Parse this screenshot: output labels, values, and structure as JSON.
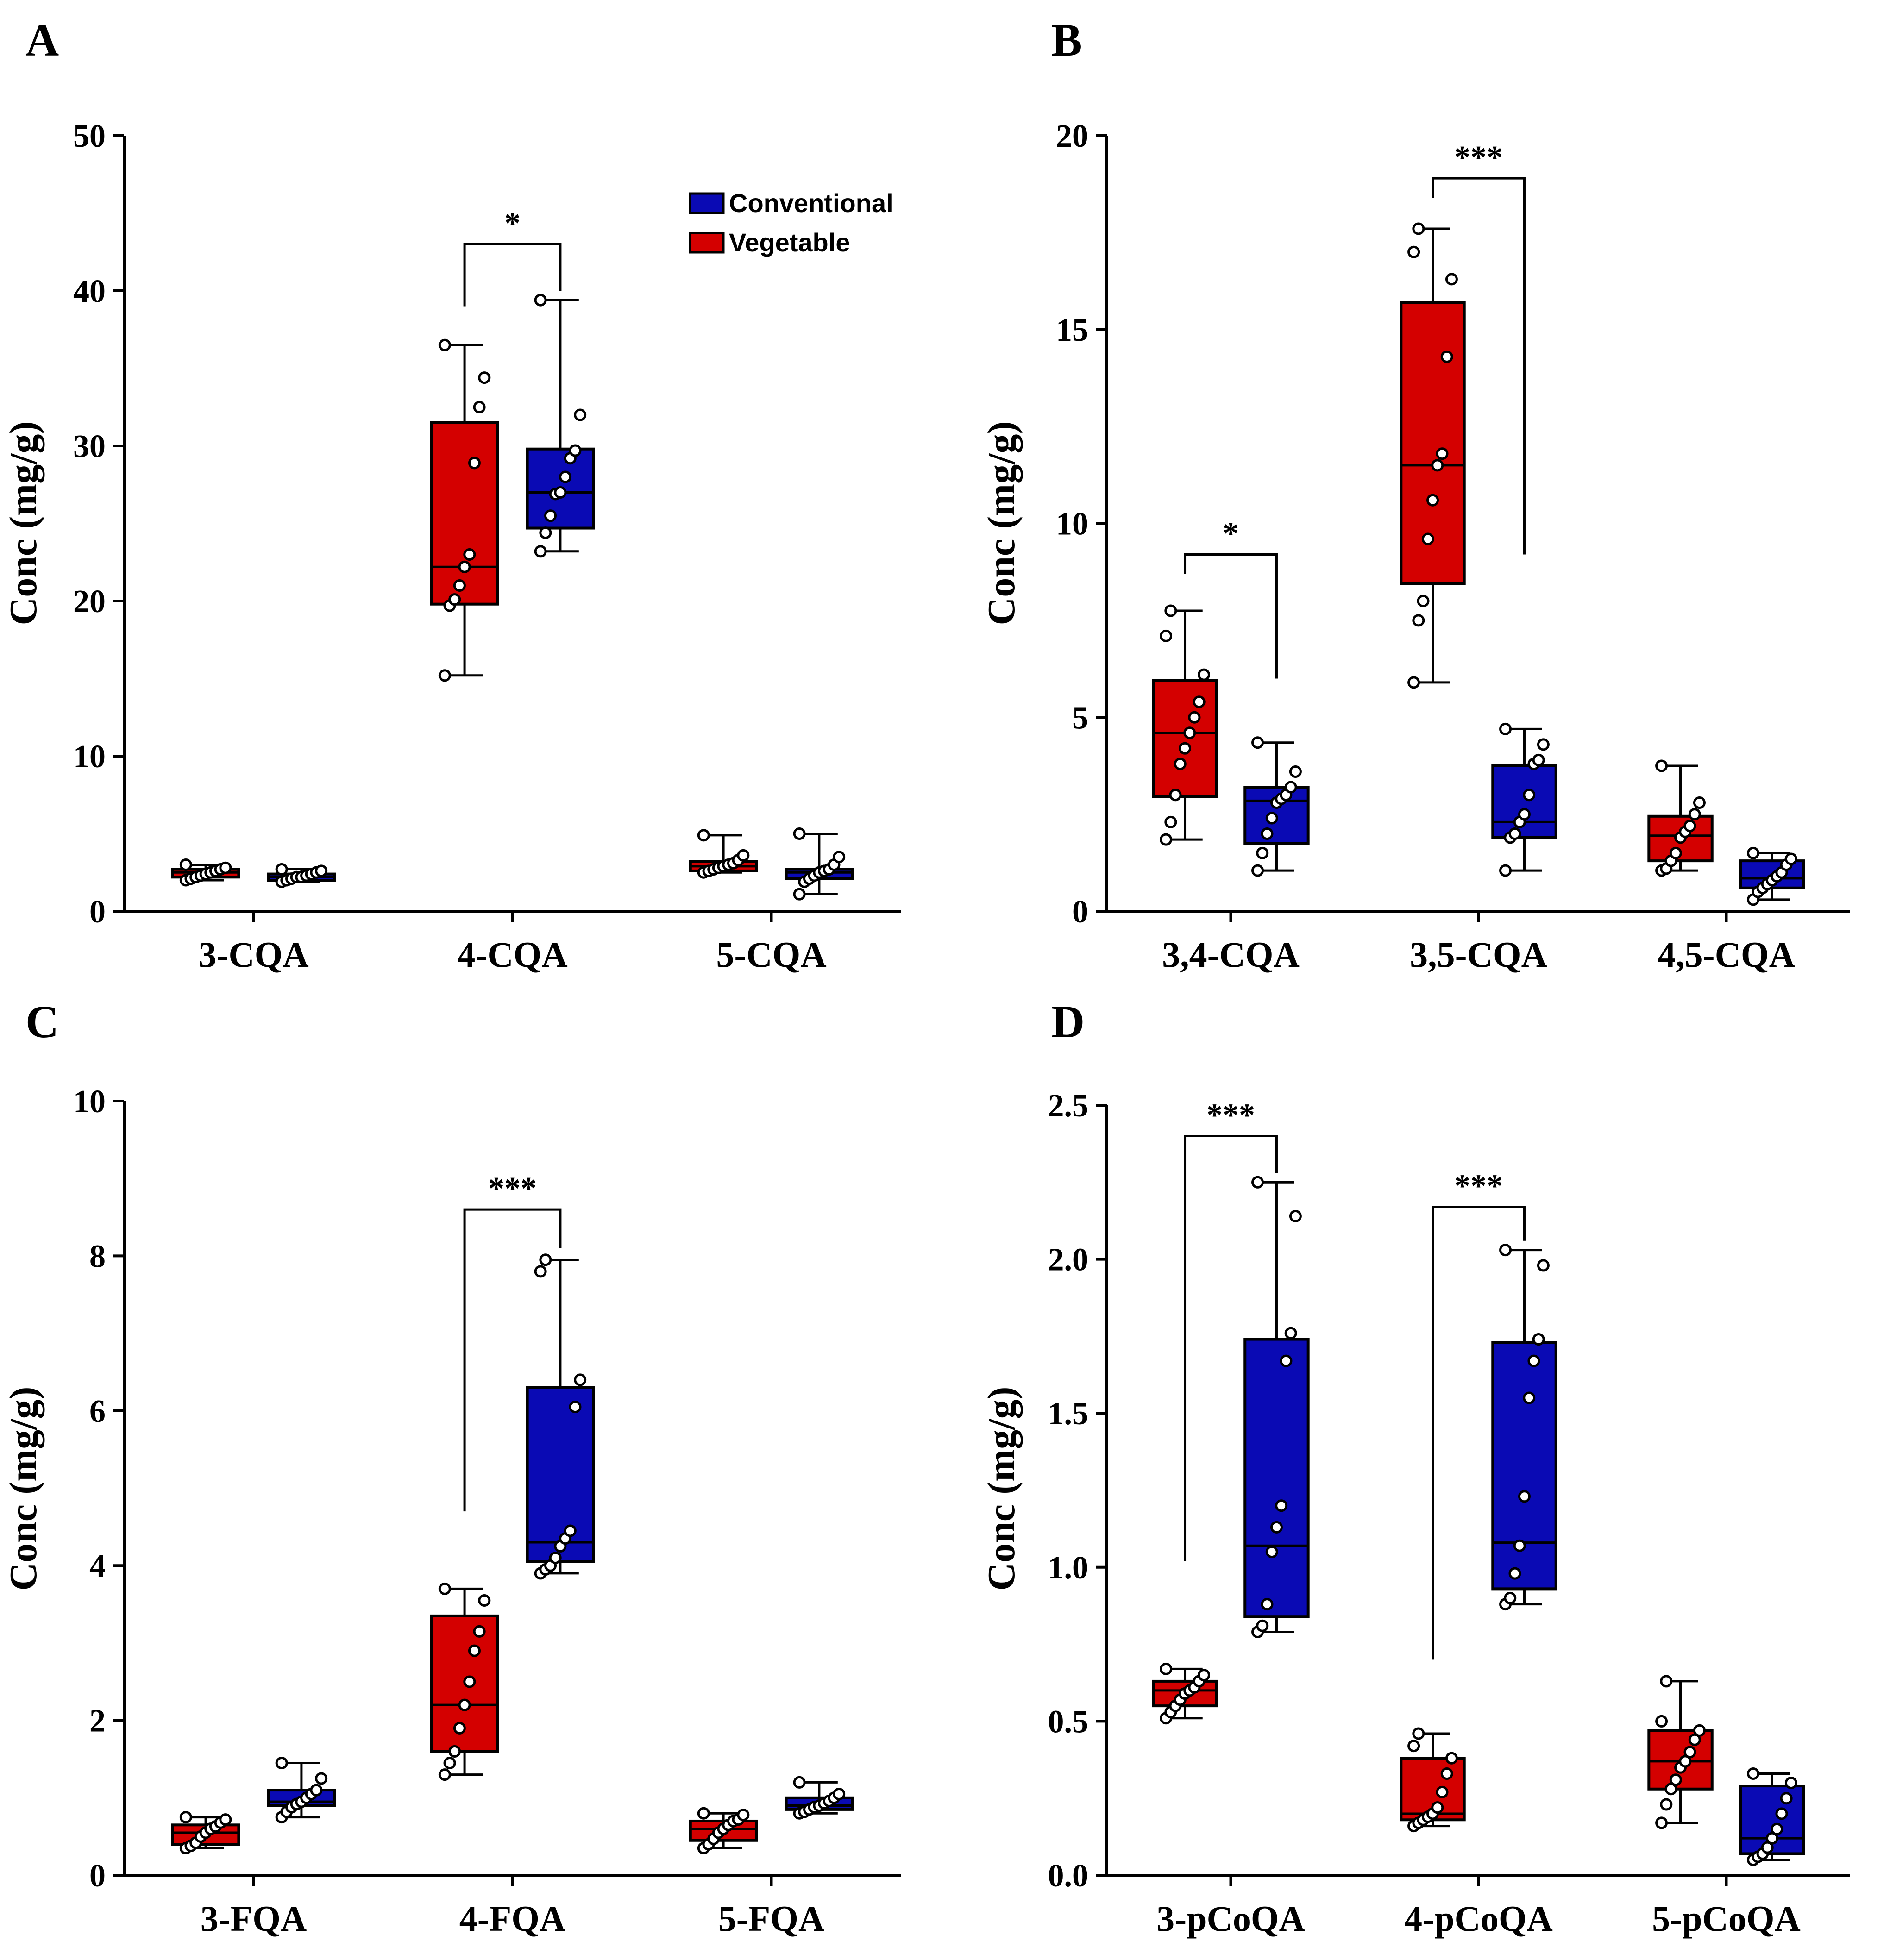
{
  "colors": {
    "vegetable": "#d40000",
    "conventional": "#0a0ab4",
    "axis": "#000000"
  },
  "legend": [
    {
      "name": "Conventional",
      "color": "#0a0ab4"
    },
    {
      "name": "Vegetable",
      "color": "#d40000"
    }
  ],
  "chart_data": [
    {
      "panel": "A",
      "type": "box",
      "ylabel": "Conc (mg/g)",
      "ylim": [
        0,
        50
      ],
      "yticks": [
        0,
        10,
        20,
        30,
        40,
        50
      ],
      "ytick_labels": [
        "0",
        "10",
        "20",
        "30",
        "40",
        "50"
      ],
      "categories": [
        "3-CQA",
        "4-CQA",
        "5-CQA"
      ],
      "series": [
        {
          "name": "Vegetable",
          "boxes": [
            {
              "min": 2.0,
              "q1": 2.2,
              "median": 2.5,
              "q3": 2.7,
              "max": 3.0,
              "points": [
                2.0,
                2.1,
                2.2,
                2.3,
                2.4,
                2.5,
                2.6,
                2.7,
                2.8,
                3.0
              ]
            },
            {
              "min": 15.2,
              "q1": 19.8,
              "median": 22.2,
              "q3": 31.5,
              "max": 36.5,
              "points": [
                15.2,
                19.7,
                20.1,
                21.0,
                22.2,
                23.0,
                28.9,
                32.5,
                34.4,
                36.5
              ]
            },
            {
              "min": 2.5,
              "q1": 2.6,
              "median": 2.9,
              "q3": 3.2,
              "max": 4.9,
              "points": [
                2.5,
                2.6,
                2.7,
                2.8,
                2.9,
                3.0,
                3.1,
                3.3,
                3.6,
                4.9
              ]
            }
          ]
        },
        {
          "name": "Conventional",
          "boxes": [
            {
              "min": 1.9,
              "q1": 2.0,
              "median": 2.2,
              "q3": 2.4,
              "max": 2.7,
              "points": [
                1.9,
                2.0,
                2.1,
                2.2,
                2.2,
                2.3,
                2.4,
                2.5,
                2.6,
                2.7
              ]
            },
            {
              "min": 23.2,
              "q1": 24.7,
              "median": 27.0,
              "q3": 29.8,
              "max": 39.4,
              "points": [
                23.2,
                24.4,
                25.5,
                26.9,
                27.0,
                28.0,
                29.2,
                29.7,
                32.0,
                39.4
              ]
            },
            {
              "min": 1.1,
              "q1": 2.1,
              "median": 2.5,
              "q3": 2.7,
              "max": 5.0,
              "points": [
                1.1,
                1.9,
                2.1,
                2.3,
                2.5,
                2.6,
                2.7,
                3.0,
                3.5,
                5.0
              ]
            }
          ]
        }
      ],
      "significance": [
        {
          "category": "4-CQA",
          "label": "*",
          "y": 43.0,
          "left_end": 39.0,
          "right_end": 40.0
        }
      ]
    },
    {
      "panel": "B",
      "type": "box",
      "ylabel": "Conc (mg/g)",
      "ylim": [
        0,
        20
      ],
      "yticks": [
        0,
        5,
        10,
        15,
        20
      ],
      "ytick_labels": [
        "0",
        "5",
        "10",
        "15",
        "20"
      ],
      "categories": [
        "3,4-CQA",
        "3,5-CQA",
        "4,5-CQA"
      ],
      "series": [
        {
          "name": "Vegetable",
          "boxes": [
            {
              "min": 1.85,
              "q1": 2.95,
              "median": 4.6,
              "q3": 5.95,
              "max": 7.75,
              "points": [
                1.85,
                2.3,
                3.0,
                3.8,
                4.2,
                4.6,
                5.0,
                5.4,
                6.1,
                7.1,
                7.75
              ]
            },
            {
              "min": 5.9,
              "q1": 8.45,
              "median": 11.5,
              "q3": 15.7,
              "max": 17.6,
              "points": [
                5.9,
                7.5,
                8.0,
                9.6,
                10.6,
                11.5,
                11.8,
                14.3,
                16.3,
                17.0,
                17.6
              ]
            },
            {
              "min": 1.05,
              "q1": 1.3,
              "median": 1.95,
              "q3": 2.45,
              "max": 3.75,
              "points": [
                1.05,
                1.1,
                1.3,
                1.5,
                1.9,
                2.05,
                2.2,
                2.5,
                2.8,
                3.75
              ]
            }
          ]
        },
        {
          "name": "Conventional",
          "boxes": [
            {
              "min": 1.05,
              "q1": 1.75,
              "median": 2.85,
              "q3": 3.2,
              "max": 4.35,
              "points": [
                1.05,
                1.5,
                2.0,
                2.4,
                2.8,
                2.9,
                3.0,
                3.2,
                3.6,
                4.35
              ]
            },
            {
              "min": 1.05,
              "q1": 1.9,
              "median": 2.3,
              "q3": 3.75,
              "max": 4.7,
              "points": [
                1.05,
                1.9,
                2.0,
                2.3,
                2.5,
                3.0,
                3.8,
                3.9,
                4.3,
                4.7
              ]
            },
            {
              "min": 0.3,
              "q1": 0.6,
              "median": 0.85,
              "q3": 1.3,
              "max": 1.5,
              "points": [
                0.3,
                0.5,
                0.6,
                0.7,
                0.8,
                0.9,
                1.0,
                1.2,
                1.35,
                1.5
              ]
            }
          ]
        }
      ],
      "significance": [
        {
          "category": "3,4-CQA",
          "label": "*",
          "y": 9.2,
          "left_end": 8.7,
          "right_end": 6.0
        },
        {
          "category": "3,5-CQA",
          "label": "***",
          "y": 18.9,
          "left_end": 18.4,
          "right_end": 9.2
        }
      ]
    },
    {
      "panel": "C",
      "type": "box",
      "ylabel": "Conc (mg/g)",
      "ylim": [
        0,
        10
      ],
      "yticks": [
        0,
        2,
        4,
        6,
        8,
        10
      ],
      "ytick_labels": [
        "0",
        "2",
        "4",
        "6",
        "8",
        "10"
      ],
      "categories": [
        "3-FQA",
        "4-FQA",
        "5-FQA"
      ],
      "series": [
        {
          "name": "Vegetable",
          "boxes": [
            {
              "min": 0.35,
              "q1": 0.4,
              "median": 0.55,
              "q3": 0.65,
              "max": 0.75,
              "points": [
                0.35,
                0.38,
                0.42,
                0.5,
                0.55,
                0.6,
                0.63,
                0.68,
                0.72,
                0.75
              ]
            },
            {
              "min": 1.3,
              "q1": 1.6,
              "median": 2.2,
              "q3": 3.35,
              "max": 3.7,
              "points": [
                1.3,
                1.45,
                1.6,
                1.9,
                2.2,
                2.5,
                2.9,
                3.15,
                3.55,
                3.7
              ]
            },
            {
              "min": 0.35,
              "q1": 0.45,
              "median": 0.6,
              "q3": 0.7,
              "max": 0.8,
              "points": [
                0.35,
                0.4,
                0.47,
                0.55,
                0.6,
                0.65,
                0.7,
                0.72,
                0.78,
                0.8
              ]
            }
          ]
        },
        {
          "name": "Conventional",
          "boxes": [
            {
              "min": 0.75,
              "q1": 0.9,
              "median": 0.95,
              "q3": 1.1,
              "max": 1.45,
              "points": [
                0.75,
                0.82,
                0.88,
                0.92,
                0.95,
                1.0,
                1.05,
                1.1,
                1.25,
                1.45
              ]
            },
            {
              "min": 3.9,
              "q1": 4.05,
              "median": 4.3,
              "q3": 6.3,
              "max": 7.95,
              "points": [
                3.9,
                3.95,
                4.0,
                4.1,
                4.25,
                4.35,
                4.45,
                6.05,
                6.4,
                7.8,
                7.95
              ]
            },
            {
              "min": 0.8,
              "q1": 0.85,
              "median": 0.9,
              "q3": 1.0,
              "max": 1.2,
              "points": [
                0.8,
                0.82,
                0.85,
                0.88,
                0.9,
                0.93,
                0.96,
                1.0,
                1.05,
                1.2
              ]
            }
          ]
        }
      ],
      "significance": [
        {
          "category": "4-FQA",
          "label": "***",
          "y": 8.6,
          "left_end": 4.7,
          "right_end": 8.1
        }
      ]
    },
    {
      "panel": "D",
      "type": "box",
      "ylabel": "Conc (mg/g)",
      "ylim": [
        0,
        2.5
      ],
      "yticks": [
        0,
        0.5,
        1.0,
        1.5,
        2.0,
        2.5
      ],
      "ytick_labels": [
        "0.0",
        "0.5",
        "1.0",
        "1.5",
        "2.0",
        "2.5"
      ],
      "categories": [
        "3-pCoQA",
        "4-pCoQA",
        "5-pCoQA"
      ],
      "series": [
        {
          "name": "Vegetable",
          "boxes": [
            {
              "min": 0.51,
              "q1": 0.55,
              "median": 0.6,
              "q3": 0.63,
              "max": 0.67,
              "points": [
                0.51,
                0.53,
                0.55,
                0.57,
                0.59,
                0.6,
                0.61,
                0.63,
                0.65,
                0.67
              ]
            },
            {
              "min": 0.16,
              "q1": 0.18,
              "median": 0.2,
              "q3": 0.38,
              "max": 0.46,
              "points": [
                0.16,
                0.17,
                0.18,
                0.19,
                0.2,
                0.22,
                0.27,
                0.33,
                0.38,
                0.42,
                0.46
              ]
            },
            {
              "min": 0.17,
              "q1": 0.28,
              "median": 0.37,
              "q3": 0.47,
              "max": 0.63,
              "points": [
                0.17,
                0.23,
                0.28,
                0.31,
                0.35,
                0.37,
                0.4,
                0.44,
                0.47,
                0.5,
                0.63
              ]
            }
          ]
        },
        {
          "name": "Conventional",
          "boxes": [
            {
              "min": 0.79,
              "q1": 0.84,
              "median": 1.07,
              "q3": 1.74,
              "max": 2.25,
              "points": [
                0.79,
                0.81,
                0.88,
                1.05,
                1.13,
                1.2,
                1.67,
                1.76,
                2.14,
                2.25
              ]
            },
            {
              "min": 0.88,
              "q1": 0.93,
              "median": 1.08,
              "q3": 1.73,
              "max": 2.03,
              "points": [
                0.88,
                0.9,
                0.98,
                1.07,
                1.23,
                1.55,
                1.67,
                1.74,
                1.98,
                2.03
              ]
            },
            {
              "min": 0.05,
              "q1": 0.07,
              "median": 0.12,
              "q3": 0.29,
              "max": 0.33,
              "points": [
                0.05,
                0.06,
                0.07,
                0.09,
                0.12,
                0.15,
                0.2,
                0.25,
                0.3,
                0.33
              ]
            }
          ]
        }
      ],
      "significance": [
        {
          "category": "3-pCoQA",
          "label": "***",
          "y": 2.4,
          "left_end": 1.02,
          "right_end": 2.28
        },
        {
          "category": "4-pCoQA",
          "label": "***",
          "y": 2.17,
          "left_end": 0.7,
          "right_end": 2.06
        }
      ]
    }
  ]
}
